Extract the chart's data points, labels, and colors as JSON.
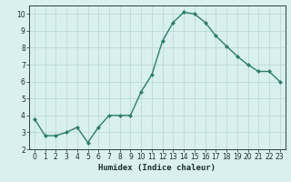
{
  "x": [
    0,
    1,
    2,
    3,
    4,
    5,
    6,
    7,
    8,
    9,
    10,
    11,
    12,
    13,
    14,
    15,
    16,
    17,
    18,
    19,
    20,
    21,
    22,
    23
  ],
  "y": [
    3.8,
    2.8,
    2.8,
    3.0,
    3.3,
    2.4,
    3.3,
    4.0,
    4.0,
    4.0,
    5.4,
    6.4,
    8.4,
    9.5,
    10.1,
    10.0,
    9.5,
    8.7,
    8.1,
    7.5,
    7.0,
    6.6,
    6.6,
    6.0
  ],
  "line_color": "#2e7d6e",
  "marker": "D",
  "marker_size": 2.0,
  "line_width": 1.0,
  "bg_color": "#d8f0ee",
  "grid_color": "#b8d4d0",
  "xlabel": "Humidex (Indice chaleur)",
  "xlim": [
    -0.5,
    23.5
  ],
  "ylim": [
    2,
    10.5
  ],
  "yticks": [
    2,
    3,
    4,
    5,
    6,
    7,
    8,
    9,
    10
  ],
  "xticks": [
    0,
    1,
    2,
    3,
    4,
    5,
    6,
    7,
    8,
    9,
    10,
    11,
    12,
    13,
    14,
    15,
    16,
    17,
    18,
    19,
    20,
    21,
    22,
    23
  ],
  "xlabel_fontsize": 6.5,
  "tick_fontsize": 5.5,
  "axis_color": "#1a3030",
  "spine_color": "#2e4040"
}
